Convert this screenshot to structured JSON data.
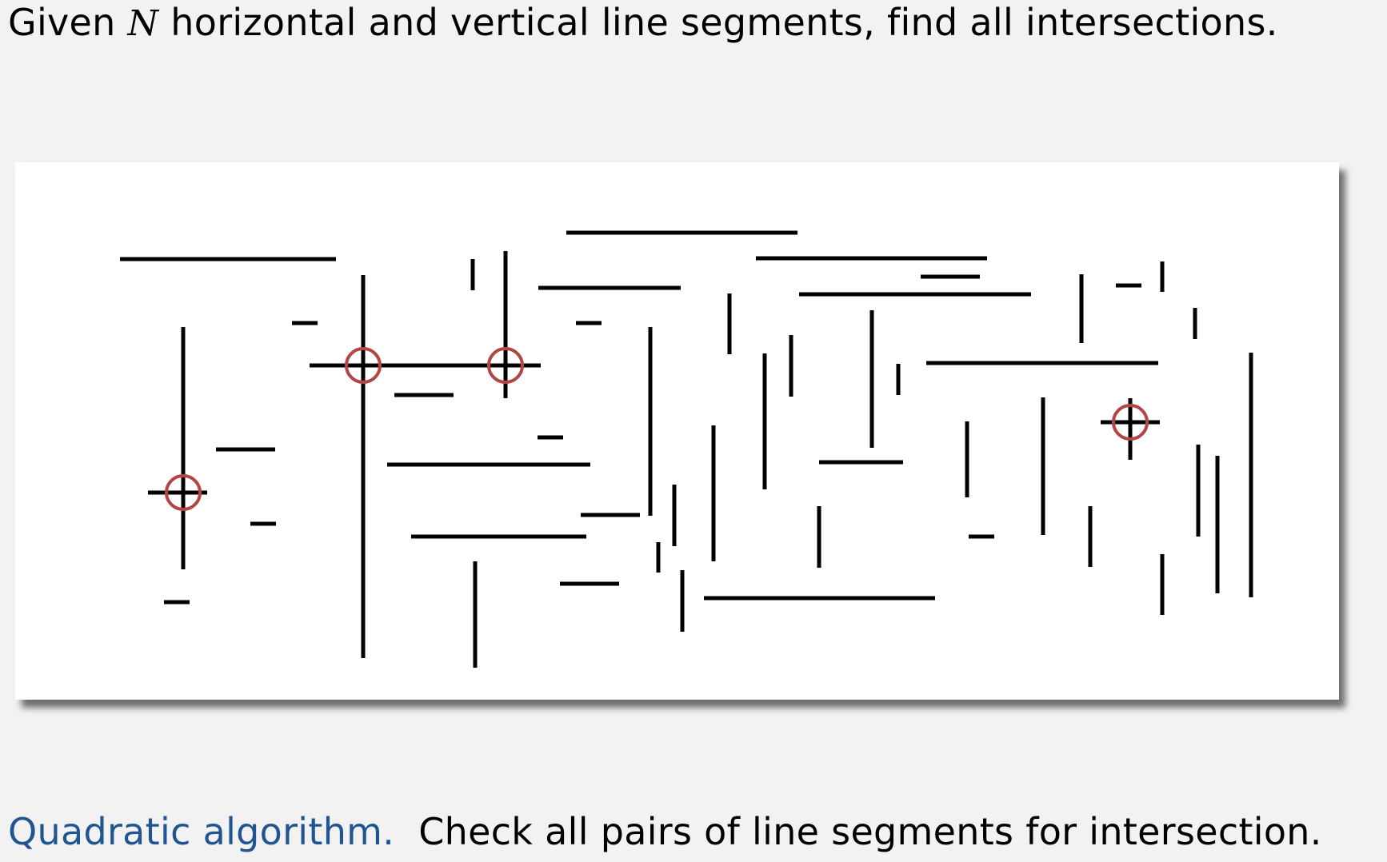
{
  "slide": {
    "heading_prefix": "Given",
    "heading_variable": "N",
    "heading_suffix": "horizontal and vertical line segments, find all intersections.",
    "caption_label": "Quadratic algorithm.",
    "caption_text": "Check all pairs of line segments for intersection."
  },
  "colors": {
    "background": "#f2f2f2",
    "panel": "#ffffff",
    "segment": "#000000",
    "intersection_marker": "#b34545",
    "caption_label": "#1f5591"
  },
  "diagram": {
    "segments": [
      {
        "id": "h-top-left",
        "orientation": "horizontal"
      },
      {
        "id": "h-top-center",
        "orientation": "horizontal"
      },
      {
        "id": "h-top-right-1",
        "orientation": "horizontal"
      },
      {
        "id": "h-top-right-2",
        "orientation": "horizontal"
      },
      {
        "id": "h-long-crossing",
        "orientation": "horizontal"
      },
      {
        "id": "h-short-center-top",
        "orientation": "horizontal"
      },
      {
        "id": "h-center-1",
        "orientation": "horizontal"
      },
      {
        "id": "h-center-2",
        "orientation": "horizontal"
      },
      {
        "id": "h-center-3",
        "orientation": "horizontal"
      },
      {
        "id": "h-right-long",
        "orientation": "horizontal"
      },
      {
        "id": "h-right-cross",
        "orientation": "horizontal"
      },
      {
        "id": "h-left-cross",
        "orientation": "horizontal"
      },
      {
        "id": "h-bottom-center",
        "orientation": "horizontal"
      },
      {
        "id": "v-left-tall",
        "orientation": "vertical"
      },
      {
        "id": "v-long-center-left",
        "orientation": "vertical"
      },
      {
        "id": "v-cross-second",
        "orientation": "vertical"
      },
      {
        "id": "v-center-1",
        "orientation": "vertical"
      },
      {
        "id": "v-center-2",
        "orientation": "vertical"
      },
      {
        "id": "v-center-3",
        "orientation": "vertical"
      },
      {
        "id": "v-right-1",
        "orientation": "vertical"
      },
      {
        "id": "v-right-cross",
        "orientation": "vertical"
      },
      {
        "id": "v-right-tall",
        "orientation": "vertical"
      }
    ],
    "intersections": [
      {
        "id": "intersection-1"
      },
      {
        "id": "intersection-2"
      },
      {
        "id": "intersection-3"
      },
      {
        "id": "intersection-4"
      }
    ]
  }
}
